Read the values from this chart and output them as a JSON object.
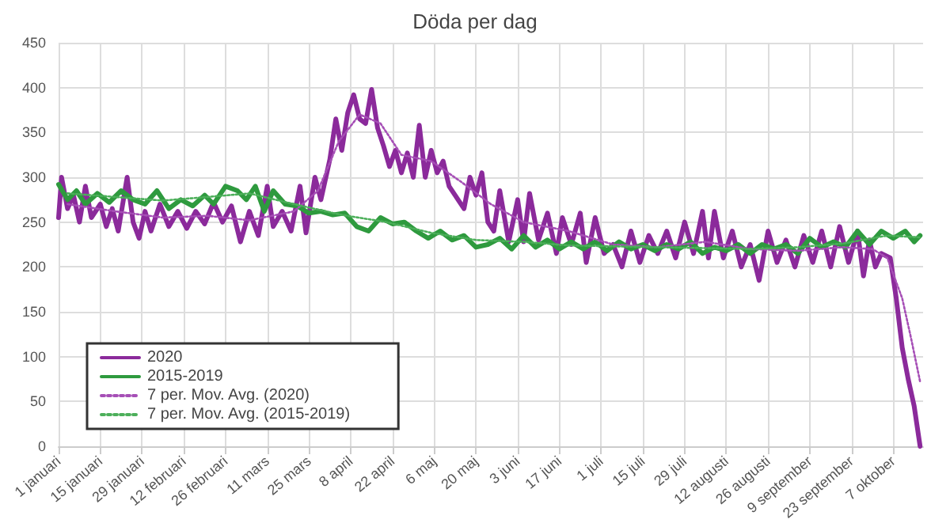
{
  "chart_data": {
    "type": "line",
    "title": "Döda per dag",
    "xlim": [
      "2020-01-01",
      "2020-10-17"
    ],
    "xticks": [
      {
        "value": "2020-01-01",
        "label": "1 januari"
      },
      {
        "value": "2020-01-15",
        "label": "15 januari"
      },
      {
        "value": "2020-01-29",
        "label": "29 januari"
      },
      {
        "value": "2020-02-12",
        "label": "12 februari"
      },
      {
        "value": "2020-02-26",
        "label": "26 februari"
      },
      {
        "value": "2020-03-11",
        "label": "11 mars"
      },
      {
        "value": "2020-03-25",
        "label": "25 mars"
      },
      {
        "value": "2020-04-08",
        "label": "8 april"
      },
      {
        "value": "2020-04-22",
        "label": "22 april"
      },
      {
        "value": "2020-05-06",
        "label": "6 maj"
      },
      {
        "value": "2020-05-20",
        "label": "20 maj"
      },
      {
        "value": "2020-06-03",
        "label": "3 juni"
      },
      {
        "value": "2020-06-17",
        "label": "17 juni"
      },
      {
        "value": "2020-07-01",
        "label": "1 juli"
      },
      {
        "value": "2020-07-15",
        "label": "15 juli"
      },
      {
        "value": "2020-07-29",
        "label": "29 juli"
      },
      {
        "value": "2020-08-12",
        "label": "12 augusti"
      },
      {
        "value": "2020-08-26",
        "label": "26 augusti"
      },
      {
        "value": "2020-09-09",
        "label": "9 september"
      },
      {
        "value": "2020-09-23",
        "label": "23 september"
      },
      {
        "value": "2020-10-07",
        "label": "7 oktober"
      }
    ],
    "ylim": [
      0,
      450
    ],
    "yticks": [
      0,
      50,
      100,
      150,
      200,
      250,
      300,
      350,
      400,
      450
    ],
    "grid": true,
    "legend": "bottom left",
    "marker": "none",
    "series": [
      {
        "name": "2020",
        "color": "#8b2a9b",
        "line_style": "solid",
        "x": [
          "2020-01-01",
          "2020-01-02",
          "2020-01-04",
          "2020-01-06",
          "2020-01-08",
          "2020-01-10",
          "2020-01-12",
          "2020-01-15",
          "2020-01-17",
          "2020-01-19",
          "2020-01-21",
          "2020-01-24",
          "2020-01-26",
          "2020-01-28",
          "2020-01-30",
          "2020-02-01",
          "2020-02-04",
          "2020-02-07",
          "2020-02-10",
          "2020-02-13",
          "2020-02-16",
          "2020-02-19",
          "2020-02-22",
          "2020-02-25",
          "2020-02-28",
          "2020-03-02",
          "2020-03-05",
          "2020-03-08",
          "2020-03-11",
          "2020-03-13",
          "2020-03-16",
          "2020-03-19",
          "2020-03-22",
          "2020-03-24",
          "2020-03-27",
          "2020-03-29",
          "2020-04-01",
          "2020-04-03",
          "2020-04-05",
          "2020-04-07",
          "2020-04-09",
          "2020-04-11",
          "2020-04-13",
          "2020-04-15",
          "2020-04-17",
          "2020-04-19",
          "2020-04-21",
          "2020-04-23",
          "2020-04-25",
          "2020-04-27",
          "2020-04-29",
          "2020-05-01",
          "2020-05-03",
          "2020-05-05",
          "2020-05-07",
          "2020-05-09",
          "2020-05-11",
          "2020-05-13",
          "2020-05-16",
          "2020-05-18",
          "2020-05-20",
          "2020-05-22",
          "2020-05-24",
          "2020-05-26",
          "2020-05-28",
          "2020-05-31",
          "2020-06-03",
          "2020-06-05",
          "2020-06-07",
          "2020-06-10",
          "2020-06-13",
          "2020-06-16",
          "2020-06-18",
          "2020-06-21",
          "2020-06-24",
          "2020-06-26",
          "2020-06-29",
          "2020-07-02",
          "2020-07-05",
          "2020-07-08",
          "2020-07-11",
          "2020-07-14",
          "2020-07-17",
          "2020-07-20",
          "2020-07-23",
          "2020-07-26",
          "2020-07-29",
          "2020-08-01",
          "2020-08-04",
          "2020-08-06",
          "2020-08-08",
          "2020-08-11",
          "2020-08-14",
          "2020-08-17",
          "2020-08-20",
          "2020-08-23",
          "2020-08-26",
          "2020-08-29",
          "2020-09-01",
          "2020-09-04",
          "2020-09-07",
          "2020-09-10",
          "2020-09-13",
          "2020-09-16",
          "2020-09-19",
          "2020-09-22",
          "2020-09-25",
          "2020-09-27",
          "2020-09-29",
          "2020-10-01",
          "2020-10-03",
          "2020-10-06",
          "2020-10-08",
          "2020-10-10",
          "2020-10-12",
          "2020-10-14",
          "2020-10-16"
        ],
        "values": [
          255,
          300,
          265,
          280,
          250,
          290,
          255,
          270,
          245,
          265,
          240,
          300,
          250,
          232,
          262,
          240,
          270,
          245,
          262,
          243,
          262,
          248,
          272,
          250,
          268,
          228,
          262,
          235,
          290,
          245,
          262,
          240,
          290,
          238,
          300,
          275,
          320,
          365,
          330,
          372,
          392,
          365,
          360,
          398,
          355,
          335,
          312,
          330,
          305,
          327,
          300,
          358,
          300,
          330,
          305,
          318,
          290,
          280,
          265,
          300,
          280,
          305,
          250,
          240,
          285,
          228,
          275,
          228,
          282,
          230,
          260,
          215,
          255,
          225,
          260,
          205,
          255,
          215,
          225,
          200,
          240,
          205,
          235,
          215,
          240,
          210,
          250,
          215,
          262,
          210,
          262,
          210,
          240,
          200,
          225,
          185,
          240,
          205,
          230,
          200,
          235,
          205,
          240,
          200,
          245,
          205,
          240,
          190,
          230,
          200,
          215,
          210,
          165,
          110,
          75,
          45,
          0
        ]
      },
      {
        "name": "2015-2019",
        "color": "#2e9a3e",
        "line_style": "solid",
        "x": [
          "2020-01-01",
          "2020-01-04",
          "2020-01-07",
          "2020-01-10",
          "2020-01-14",
          "2020-01-18",
          "2020-01-22",
          "2020-01-26",
          "2020-01-30",
          "2020-02-03",
          "2020-02-07",
          "2020-02-11",
          "2020-02-15",
          "2020-02-19",
          "2020-02-22",
          "2020-02-26",
          "2020-03-01",
          "2020-03-04",
          "2020-03-07",
          "2020-03-10",
          "2020-03-13",
          "2020-03-17",
          "2020-03-21",
          "2020-03-25",
          "2020-03-29",
          "2020-04-02",
          "2020-04-06",
          "2020-04-10",
          "2020-04-14",
          "2020-04-18",
          "2020-04-22",
          "2020-04-26",
          "2020-04-30",
          "2020-05-04",
          "2020-05-08",
          "2020-05-12",
          "2020-05-16",
          "2020-05-20",
          "2020-05-24",
          "2020-05-28",
          "2020-06-01",
          "2020-06-05",
          "2020-06-09",
          "2020-06-13",
          "2020-06-17",
          "2020-06-21",
          "2020-06-25",
          "2020-06-29",
          "2020-07-03",
          "2020-07-07",
          "2020-07-11",
          "2020-07-15",
          "2020-07-19",
          "2020-07-23",
          "2020-07-27",
          "2020-07-31",
          "2020-08-04",
          "2020-08-08",
          "2020-08-12",
          "2020-08-16",
          "2020-08-20",
          "2020-08-24",
          "2020-08-28",
          "2020-09-01",
          "2020-09-05",
          "2020-09-09",
          "2020-09-13",
          "2020-09-17",
          "2020-09-21",
          "2020-09-25",
          "2020-09-29",
          "2020-10-03",
          "2020-10-07",
          "2020-10-11",
          "2020-10-14",
          "2020-10-16"
        ],
        "values": [
          292,
          275,
          285,
          270,
          282,
          272,
          285,
          275,
          270,
          285,
          265,
          275,
          268,
          280,
          270,
          290,
          285,
          275,
          290,
          262,
          285,
          270,
          268,
          260,
          262,
          258,
          260,
          245,
          240,
          255,
          248,
          250,
          240,
          232,
          240,
          230,
          235,
          222,
          225,
          232,
          220,
          235,
          222,
          230,
          220,
          228,
          220,
          228,
          218,
          228,
          220,
          225,
          218,
          225,
          220,
          228,
          215,
          222,
          218,
          225,
          215,
          225,
          220,
          225,
          215,
          232,
          222,
          228,
          222,
          240,
          225,
          240,
          232,
          240,
          228,
          235
        ]
      },
      {
        "name": "7 per. Mov. Avg. (2020)",
        "color": "#a64fb6",
        "line_style": "dotted",
        "x": [
          "2020-01-04",
          "2020-01-20",
          "2020-02-05",
          "2020-02-20",
          "2020-03-05",
          "2020-03-20",
          "2020-03-28",
          "2020-04-04",
          "2020-04-11",
          "2020-04-18",
          "2020-04-25",
          "2020-05-05",
          "2020-05-15",
          "2020-05-25",
          "2020-06-05",
          "2020-06-20",
          "2020-07-05",
          "2020-07-20",
          "2020-08-05",
          "2020-08-20",
          "2020-09-05",
          "2020-09-20",
          "2020-09-30",
          "2020-10-05",
          "2020-10-10",
          "2020-10-13",
          "2020-10-16"
        ],
        "values": [
          270,
          262,
          255,
          257,
          252,
          262,
          285,
          340,
          370,
          360,
          325,
          318,
          295,
          270,
          250,
          240,
          225,
          222,
          228,
          220,
          218,
          222,
          220,
          210,
          165,
          120,
          72
        ]
      },
      {
        "name": "7 per. Mov. Avg. (2015-2019)",
        "color": "#4caf5a",
        "line_style": "dotted",
        "x": [
          "2020-01-04",
          "2020-01-20",
          "2020-02-05",
          "2020-02-20",
          "2020-03-05",
          "2020-03-20",
          "2020-04-05",
          "2020-04-20",
          "2020-05-05",
          "2020-05-20",
          "2020-06-05",
          "2020-06-20",
          "2020-07-05",
          "2020-07-20",
          "2020-08-05",
          "2020-08-20",
          "2020-09-05",
          "2020-09-20",
          "2020-10-05",
          "2020-10-16"
        ],
        "values": [
          282,
          278,
          274,
          278,
          282,
          270,
          258,
          250,
          238,
          230,
          228,
          224,
          223,
          222,
          221,
          220,
          222,
          226,
          235,
          233
        ]
      }
    ]
  }
}
